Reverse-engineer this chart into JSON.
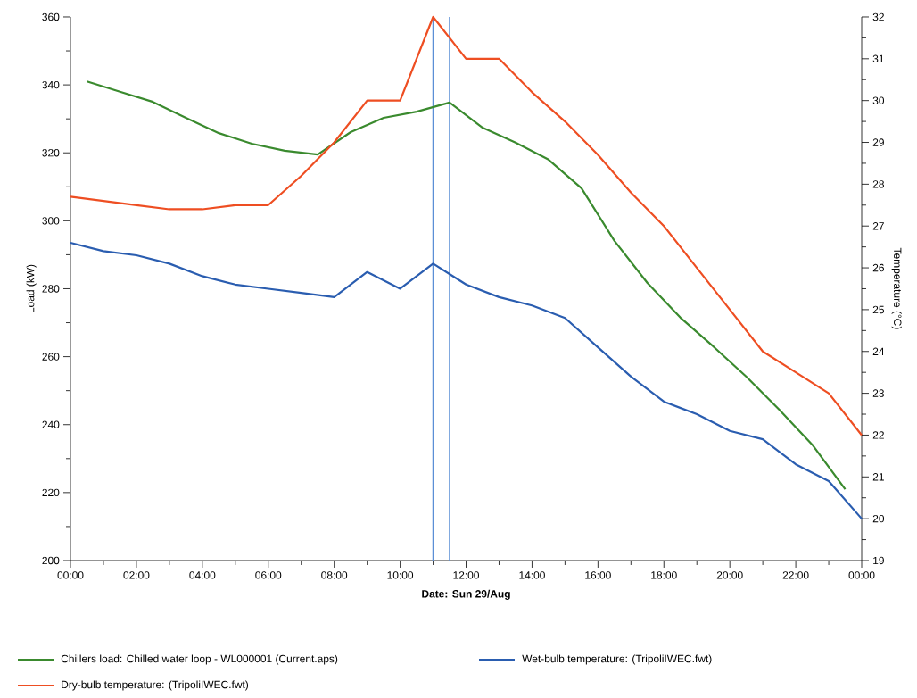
{
  "chart_data": {
    "type": "line",
    "xlabel": "Date: Sun 29/Aug",
    "ylabel": "Load (kW)",
    "y2label": "Temperature (°C)",
    "legend": "bottom",
    "xlim": [
      0,
      24
    ],
    "xticks": [
      {
        "value": 0,
        "label": "00:00"
      },
      {
        "value": 1,
        "label": null
      },
      {
        "value": 2,
        "label": "02:00"
      },
      {
        "value": 3,
        "label": null
      },
      {
        "value": 4,
        "label": "04:00"
      },
      {
        "value": 5,
        "label": null
      },
      {
        "value": 6,
        "label": "06:00"
      },
      {
        "value": 7,
        "label": null
      },
      {
        "value": 8,
        "label": "08:00"
      },
      {
        "value": 9,
        "label": null
      },
      {
        "value": 10,
        "label": "10:00"
      },
      {
        "value": 11,
        "label": null
      },
      {
        "value": 12,
        "label": "12:00"
      },
      {
        "value": 13,
        "label": null
      },
      {
        "value": 14,
        "label": "14:00"
      },
      {
        "value": 15,
        "label": null
      },
      {
        "value": 16,
        "label": "16:00"
      },
      {
        "value": 17,
        "label": null
      },
      {
        "value": 18,
        "label": "18:00"
      },
      {
        "value": 19,
        "label": null
      },
      {
        "value": 20,
        "label": "20:00"
      },
      {
        "value": 21,
        "label": null
      },
      {
        "value": 22,
        "label": "22:00"
      },
      {
        "value": 23,
        "label": null
      },
      {
        "value": 24,
        "label": "00:00"
      }
    ],
    "ylim": [
      200,
      360
    ],
    "yticks": [
      200,
      {
        "value": 210,
        "label": null
      },
      220,
      {
        "value": 230,
        "label": null
      },
      240,
      {
        "value": 250,
        "label": null
      },
      260,
      {
        "value": 270,
        "label": null
      },
      280,
      {
        "value": 290,
        "label": null
      },
      300,
      {
        "value": 310,
        "label": null
      },
      320,
      {
        "value": 330,
        "label": null
      },
      340,
      {
        "value": 350,
        "label": null
      },
      360
    ],
    "y2lim": [
      19,
      32
    ],
    "y2ticks": [
      19,
      {
        "value": 19.5,
        "label": null
      },
      20,
      {
        "value": 20.5,
        "label": null
      },
      21,
      {
        "value": 21.5,
        "label": null
      },
      22,
      {
        "value": 22.5,
        "label": null
      },
      23,
      {
        "value": 23.5,
        "label": null
      },
      24,
      {
        "value": 24.5,
        "label": null
      },
      25,
      {
        "value": 25.5,
        "label": null
      },
      26,
      {
        "value": 26.5,
        "label": null
      },
      27,
      {
        "value": 27.5,
        "label": null
      },
      28,
      {
        "value": 28.5,
        "label": null
      },
      29,
      {
        "value": 29.5,
        "label": null
      },
      30,
      {
        "value": 30.5,
        "label": null
      },
      31,
      {
        "value": 31.5,
        "label": null
      },
      32
    ],
    "series": [
      {
        "name": "Chillers load: Chilled water loop - WL000001 (Current.aps)",
        "color": "#3a8a2e",
        "x": [
          0.5,
          1.5,
          2.5,
          3.5,
          4.5,
          5.5,
          6.5,
          7.5,
          8.5,
          9.5,
          10.5,
          11.5,
          12.5,
          13.5,
          14.5,
          15.5,
          16.5,
          17.5,
          18.5,
          19.5,
          20.5,
          21.5,
          22.5,
          23.5
        ],
        "values": [
          341,
          338,
          335,
          330.3,
          325.8,
          322.7,
          320.6,
          319.5,
          326.1,
          330.3,
          332.1,
          334.8,
          327.4,
          323,
          318,
          309.6,
          294.1,
          281.7,
          271.5,
          263,
          254.1,
          244.4,
          234.1,
          221
        ]
      },
      {
        "name": "Wet-bulb temperature:  (TripoliIWEC.fwt)",
        "color": "#2a5db0",
        "axis": "y2",
        "x": [
          0,
          1,
          2,
          3,
          4,
          5,
          6,
          7,
          8,
          9,
          10,
          11,
          12,
          13,
          14,
          15,
          16,
          17,
          18,
          19,
          20,
          21,
          22,
          23,
          24
        ],
        "values": [
          26.6,
          26.4,
          26.3,
          26.1,
          25.8,
          25.6,
          25.5,
          25.4,
          25.3,
          25.9,
          25.5,
          26.1,
          25.6,
          25.3,
          25.1,
          24.8,
          24.1,
          23.4,
          22.8,
          22.5,
          22.1,
          21.9,
          21.3,
          20.9,
          20
        ]
      },
      {
        "name": "Dry-bulb temperature:  (TripoliIWEC.fwt)",
        "color": "#ee4e22",
        "axis": "y2",
        "x": [
          0,
          1,
          2,
          3,
          4,
          5,
          6,
          7,
          8,
          9,
          10,
          11,
          12,
          13,
          14,
          15,
          16,
          17,
          18,
          19,
          20,
          21,
          22,
          23,
          24
        ],
        "values": [
          27.7,
          27.6,
          27.5,
          27.4,
          27.4,
          27.5,
          27.5,
          28.2,
          29,
          30,
          30,
          32,
          31,
          31,
          30.2,
          29.5,
          28.7,
          27.8,
          27,
          26,
          25,
          24,
          23.5,
          23,
          22
        ]
      }
    ],
    "ref_lines": [
      {
        "axis": "x",
        "value": 11,
        "color": "#5b8fd6"
      },
      {
        "axis": "x",
        "value": 11.5,
        "color": "#5b8fd6"
      }
    ]
  }
}
